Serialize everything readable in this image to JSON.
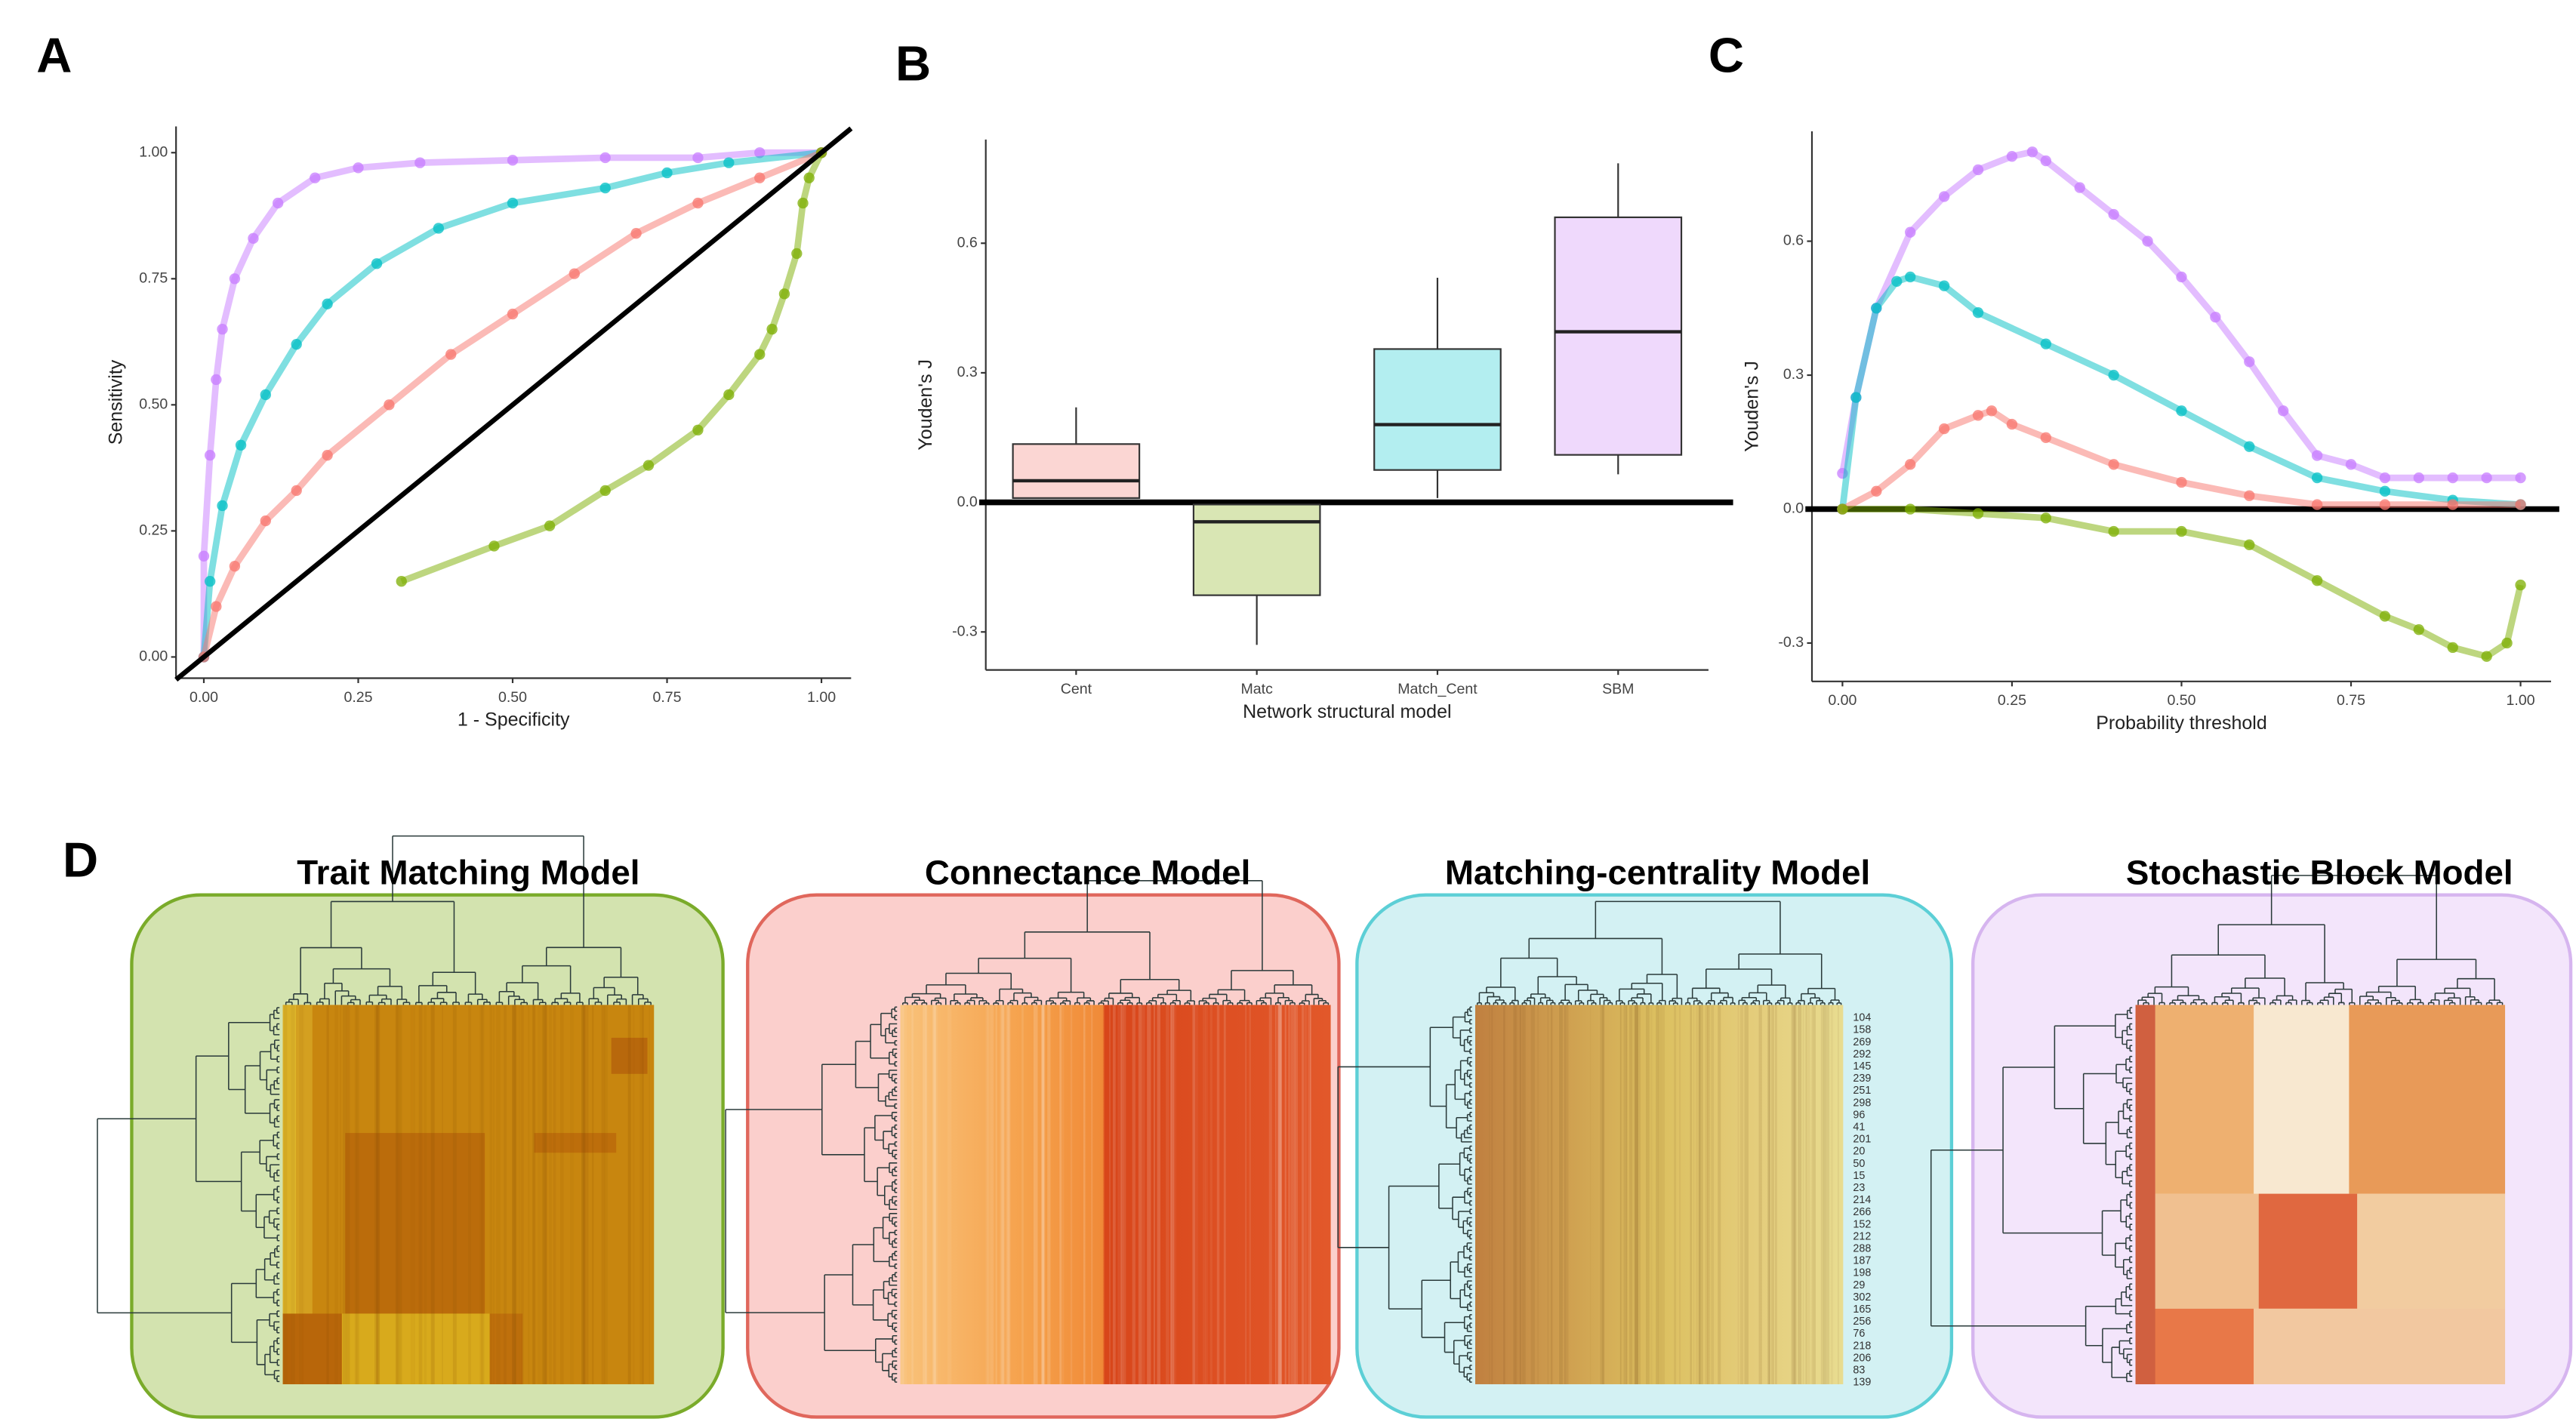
{
  "panel_labels": [
    "A",
    "B",
    "C",
    "D"
  ],
  "chart_data": [
    {
      "type": "line",
      "xlabel": "1 - Specificity",
      "ylabel": "Sensitivity",
      "xlim": [
        -0.045,
        1.048
      ],
      "ylim": [
        -0.042,
        1.052
      ],
      "xticks": [
        {
          "value": 0,
          "label": "0.00"
        },
        {
          "value": 0.25,
          "label": "0.25"
        },
        {
          "value": 0.5,
          "label": "0.50"
        },
        {
          "value": 0.75,
          "label": "0.75"
        },
        {
          "value": 1,
          "label": "1.00"
        }
      ],
      "yticks": [
        {
          "value": 0,
          "label": "0.00"
        },
        {
          "value": 0.25,
          "label": "0.25"
        },
        {
          "value": 0.5,
          "label": "0.50"
        },
        {
          "value": 0.75,
          "label": "0.75"
        },
        {
          "value": 1,
          "label": "1.00"
        }
      ],
      "series": [
        {
          "color": "#c77cff",
          "markers": true,
          "x": [
            0,
            0,
            0.01,
            0.02,
            0.03,
            0.05,
            0.08,
            0.12,
            0.18,
            0.25,
            0.35,
            0.5,
            0.65,
            0.8,
            0.9,
            1.0
          ],
          "values": [
            0,
            0.2,
            0.4,
            0.55,
            0.65,
            0.75,
            0.83,
            0.9,
            0.95,
            0.97,
            0.98,
            0.985,
            0.99,
            0.99,
            1.0,
            1.0
          ]
        },
        {
          "color": "#00bfc4",
          "markers": true,
          "x": [
            0,
            0.01,
            0.03,
            0.06,
            0.1,
            0.15,
            0.2,
            0.28,
            0.38,
            0.5,
            0.65,
            0.75,
            0.85,
            1.0
          ],
          "values": [
            0,
            0.15,
            0.3,
            0.42,
            0.52,
            0.62,
            0.7,
            0.78,
            0.85,
            0.9,
            0.93,
            0.96,
            0.98,
            1.0
          ]
        },
        {
          "color": "#f8766d",
          "markers": true,
          "x": [
            0,
            0.02,
            0.05,
            0.1,
            0.15,
            0.2,
            0.3,
            0.4,
            0.5,
            0.6,
            0.7,
            0.8,
            0.9,
            1.0
          ],
          "values": [
            0,
            0.1,
            0.18,
            0.27,
            0.33,
            0.4,
            0.5,
            0.6,
            0.68,
            0.76,
            0.84,
            0.9,
            0.95,
            1.0
          ]
        },
        {
          "color": "#7cae00",
          "markers": true,
          "x": [
            0.32,
            0.47,
            0.56,
            0.65,
            0.72,
            0.8,
            0.85,
            0.9,
            0.92,
            0.94,
            0.96,
            0.97,
            0.98,
            1.0
          ],
          "values": [
            0.15,
            0.22,
            0.26,
            0.33,
            0.38,
            0.45,
            0.52,
            0.6,
            0.65,
            0.72,
            0.8,
            0.9,
            0.95,
            1.0
          ]
        },
        {
          "color": "#000000",
          "markers": false,
          "x": [
            -0.045,
            1.048
          ],
          "values": [
            -0.045,
            1.048
          ]
        }
      ]
    },
    {
      "type": "box",
      "xlabel": "Network structural model",
      "ylabel": "Youden's J",
      "ylim": [
        -0.388,
        0.84
      ],
      "yticks": [
        -0.3,
        {
          "value": 0,
          "label": "0.0"
        },
        0.3,
        0.6
      ],
      "hline": 0,
      "categories": [
        "Cent",
        "Matc",
        "Match_Cent",
        "SBM"
      ],
      "colors": [
        "#fbd6d3",
        "#d9e6b4",
        "#b3eef0",
        "#efd9fc"
      ],
      "boxes": [
        {
          "low": 0.01,
          "q1": 0.01,
          "median": 0.05,
          "q3": 0.135,
          "high": 0.22
        },
        {
          "low": -0.33,
          "q1": -0.215,
          "median": -0.045,
          "q3": -0.005,
          "high": -0.005
        },
        {
          "low": 0.01,
          "q1": 0.075,
          "median": 0.18,
          "q3": 0.355,
          "high": 0.52
        },
        {
          "low": 0.065,
          "q1": 0.11,
          "median": 0.395,
          "q3": 0.66,
          "high": 0.785
        }
      ]
    },
    {
      "type": "line",
      "xlabel": "Probability threshold",
      "ylabel": "Youden's J",
      "xlim": [
        -0.045,
        1.045
      ],
      "ylim": [
        -0.386,
        0.846
      ],
      "xticks": [
        {
          "value": 0,
          "label": "0.00"
        },
        {
          "value": 0.25,
          "label": "0.25"
        },
        {
          "value": 0.5,
          "label": "0.50"
        },
        {
          "value": 0.75,
          "label": "0.75"
        },
        {
          "value": 1,
          "label": "1.00"
        }
      ],
      "yticks": [
        -0.3,
        {
          "value": 0,
          "label": "0.0"
        },
        0.3,
        0.6
      ],
      "hline": 0,
      "series": [
        {
          "color": "#c77cff",
          "markers": true,
          "x": [
            0,
            0.02,
            0.05,
            0.1,
            0.15,
            0.2,
            0.25,
            0.28,
            0.3,
            0.35,
            0.4,
            0.45,
            0.5,
            0.55,
            0.6,
            0.65,
            0.7,
            0.75,
            0.8,
            0.85,
            0.9,
            0.95,
            1.0
          ],
          "values": [
            0.08,
            0.25,
            0.45,
            0.62,
            0.7,
            0.76,
            0.79,
            0.8,
            0.78,
            0.72,
            0.66,
            0.6,
            0.52,
            0.43,
            0.33,
            0.22,
            0.12,
            0.1,
            0.07,
            0.07,
            0.07,
            0.07,
            0.07
          ]
        },
        {
          "color": "#00bfc4",
          "markers": true,
          "x": [
            0,
            0.02,
            0.05,
            0.08,
            0.1,
            0.15,
            0.2,
            0.3,
            0.4,
            0.5,
            0.6,
            0.7,
            0.8,
            0.9,
            1.0
          ],
          "values": [
            0,
            0.25,
            0.45,
            0.51,
            0.52,
            0.5,
            0.44,
            0.37,
            0.3,
            0.22,
            0.14,
            0.07,
            0.04,
            0.02,
            0.01
          ]
        },
        {
          "color": "#f8766d",
          "markers": true,
          "x": [
            0,
            0.05,
            0.1,
            0.15,
            0.2,
            0.22,
            0.25,
            0.3,
            0.4,
            0.5,
            0.6,
            0.7,
            0.8,
            0.9,
            1.0
          ],
          "values": [
            0,
            0.04,
            0.1,
            0.18,
            0.21,
            0.22,
            0.19,
            0.16,
            0.1,
            0.06,
            0.03,
            0.01,
            0.01,
            0.01,
            0.01
          ]
        },
        {
          "color": "#7cae00",
          "markers": true,
          "x": [
            0,
            0.1,
            0.2,
            0.3,
            0.4,
            0.5,
            0.6,
            0.7,
            0.8,
            0.85,
            0.9,
            0.95,
            0.98,
            1.0
          ],
          "values": [
            0,
            0,
            -0.01,
            -0.02,
            -0.05,
            -0.05,
            -0.08,
            -0.16,
            -0.24,
            -0.27,
            -0.31,
            -0.33,
            -0.3,
            -0.17
          ]
        }
      ]
    }
  ],
  "heatmaps": [
    {
      "title": "Trait Matching Model"
    },
    {
      "title": "Connectance Model"
    },
    {
      "title": "Matching-centrality Model",
      "row_labels": [
        "104",
        "158",
        "269",
        "292",
        "145",
        "239",
        "251",
        "298",
        "96",
        "41",
        "201",
        "20",
        "50",
        "15",
        "23",
        "214",
        "266",
        "152",
        "212",
        "288",
        "187",
        "198",
        "29",
        "302",
        "165",
        "256",
        "76",
        "218",
        "206",
        "83",
        "139"
      ]
    },
    {
      "title": "Stochastic Block Model"
    }
  ]
}
